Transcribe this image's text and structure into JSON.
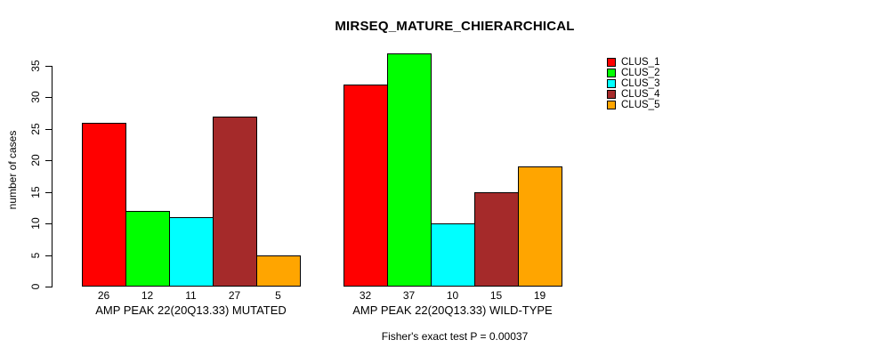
{
  "chart_data": {
    "type": "bar",
    "title": "MIRSEQ_MATURE_CHIERARCHICAL",
    "ylabel": "number of cases",
    "xlabel": "",
    "ylim": [
      0,
      35
    ],
    "yticks": [
      0,
      5,
      10,
      15,
      20,
      25,
      30,
      35
    ],
    "grid": false,
    "legend_position": "top-right",
    "bar_value_labels_shown": true,
    "categories": [
      "AMP PEAK 22(20Q13.33) MUTATED",
      "AMP PEAK 22(20Q13.33) WILD-TYPE"
    ],
    "series": [
      {
        "name": "CLUS_1",
        "color": "#FF0000",
        "values": [
          26,
          32
        ]
      },
      {
        "name": "CLUS_2",
        "color": "#00FF00",
        "values": [
          12,
          37
        ]
      },
      {
        "name": "CLUS_3",
        "color": "#00FFFF",
        "values": [
          11,
          10
        ]
      },
      {
        "name": "CLUS_4",
        "color": "#A52A2A",
        "values": [
          27,
          15
        ]
      },
      {
        "name": "CLUS_5",
        "color": "#FFA500",
        "values": [
          5,
          19
        ]
      }
    ],
    "annotation": "Fisher's exact test P = 0.00037",
    "axis_color": "#000000",
    "bar_border_color": "#000000",
    "background_color": "#FFFFFF"
  }
}
